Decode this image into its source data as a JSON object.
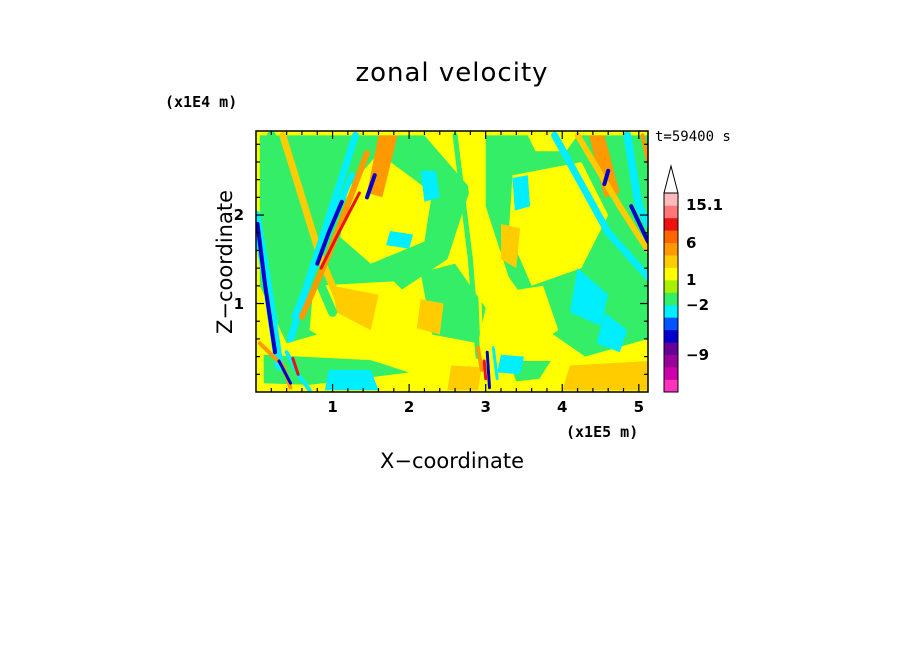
{
  "chart_data": {
    "type": "heatmap",
    "title": "zonal velocity",
    "xlabel": "X−coordinate",
    "ylabel": "Z−coordinate",
    "x_multiplier": "(x1E5 m)",
    "y_multiplier": "(x1E4 m)",
    "time_label": "t=59400 s",
    "xlim": [
      0,
      5.12
    ],
    "ylim": [
      0,
      2.95
    ],
    "x_ticks": [
      1,
      2,
      3,
      4,
      5
    ],
    "x_tick_labels": [
      "1",
      "2",
      "3",
      "4",
      "5"
    ],
    "y_ticks": [
      1,
      2
    ],
    "y_tick_labels": [
      "1",
      "2"
    ],
    "background_color": "#ffff00",
    "colorbar": {
      "levels": [
        {
          "color": "#ff33bb"
        },
        {
          "color": "#cc00aa"
        },
        {
          "color": "#990099"
        },
        {
          "color": "#660099"
        },
        {
          "color": "#0000cc"
        },
        {
          "color": "#0055ff"
        },
        {
          "color": "#00eeff"
        },
        {
          "color": "#33ee66"
        },
        {
          "color": "#aaee00"
        },
        {
          "color": "#ffff00"
        },
        {
          "color": "#ffcc00"
        },
        {
          "color": "#ff9900"
        },
        {
          "color": "#ff6600"
        },
        {
          "color": "#ee1111"
        },
        {
          "color": "#ff7777"
        },
        {
          "color": "#ffbbbb"
        }
      ],
      "labels": [
        "15.1",
        "6",
        "1",
        "−2",
        "−9"
      ],
      "label_levels": [
        15.1,
        6,
        1,
        -2,
        -9
      ]
    },
    "regions": [
      {
        "color": "#33ee66",
        "points": [
          [
            0.05,
            2.9
          ],
          [
            2.2,
            2.9
          ],
          [
            2.8,
            2.3
          ],
          [
            2.5,
            1.5
          ],
          [
            1.2,
            0.75
          ],
          [
            0.4,
            0.55
          ],
          [
            0.05,
            1.2
          ]
        ]
      },
      {
        "color": "#33ee66",
        "points": [
          [
            2.15,
            1.35
          ],
          [
            2.6,
            1.45
          ],
          [
            3.0,
            0.95
          ],
          [
            2.9,
            0.55
          ],
          [
            2.3,
            0.65
          ]
        ]
      },
      {
        "color": "#33ee66",
        "points": [
          [
            3.0,
            2.9
          ],
          [
            5.12,
            2.9
          ],
          [
            5.12,
            0.6
          ],
          [
            4.3,
            0.4
          ],
          [
            3.8,
            0.7
          ],
          [
            3.3,
            1.3
          ],
          [
            3.0,
            2.1
          ]
        ]
      },
      {
        "color": "#33ee66",
        "points": [
          [
            3.3,
            0.35
          ],
          [
            3.85,
            0.35
          ],
          [
            3.7,
            0.15
          ],
          [
            3.4,
            0.12
          ]
        ]
      },
      {
        "color": "#33ee66",
        "points": [
          [
            0.1,
            0.42
          ],
          [
            1.5,
            0.36
          ],
          [
            2.0,
            0.22
          ],
          [
            0.7,
            0.08
          ],
          [
            0.1,
            0.1
          ]
        ]
      },
      {
        "color": "#ffff00",
        "points": [
          [
            1.6,
            2.7
          ],
          [
            2.3,
            2.25
          ],
          [
            2.2,
            1.7
          ],
          [
            1.5,
            1.45
          ],
          [
            1.1,
            1.75
          ],
          [
            1.2,
            2.3
          ]
        ]
      },
      {
        "color": "#ffff00",
        "points": [
          [
            0.75,
            1.2
          ],
          [
            1.8,
            1.25
          ],
          [
            2.2,
            0.9
          ],
          [
            1.9,
            0.55
          ],
          [
            1.1,
            0.5
          ],
          [
            0.7,
            0.7
          ]
        ]
      },
      {
        "color": "#ffff00",
        "points": [
          [
            3.35,
            2.45
          ],
          [
            4.25,
            2.6
          ],
          [
            4.6,
            2.0
          ],
          [
            4.25,
            1.4
          ],
          [
            3.6,
            1.2
          ],
          [
            3.3,
            1.8
          ]
        ]
      },
      {
        "color": "#ffff00",
        "points": [
          [
            3.0,
            1.1
          ],
          [
            3.75,
            1.2
          ],
          [
            3.95,
            0.7
          ],
          [
            3.5,
            0.45
          ],
          [
            3.05,
            0.6
          ]
        ]
      },
      {
        "color": "#ffff00",
        "points": [
          [
            3.55,
            2.9
          ],
          [
            4.2,
            2.9
          ],
          [
            4.05,
            2.72
          ],
          [
            3.65,
            2.72
          ]
        ]
      },
      {
        "color": "#00eeff",
        "points": [
          [
            2.15,
            2.5
          ],
          [
            2.35,
            2.5
          ],
          [
            2.4,
            2.2
          ],
          [
            2.2,
            2.15
          ]
        ]
      },
      {
        "color": "#00eeff",
        "points": [
          [
            1.75,
            1.82
          ],
          [
            2.05,
            1.78
          ],
          [
            2.0,
            1.62
          ],
          [
            1.7,
            1.66
          ]
        ]
      },
      {
        "color": "#00eeff",
        "points": [
          [
            3.35,
            2.42
          ],
          [
            3.55,
            2.45
          ],
          [
            3.58,
            2.1
          ],
          [
            3.38,
            2.05
          ]
        ]
      },
      {
        "color": "#00eeff",
        "points": [
          [
            4.2,
            1.4
          ],
          [
            4.6,
            1.1
          ],
          [
            4.5,
            0.75
          ],
          [
            4.1,
            0.9
          ]
        ]
      },
      {
        "color": "#00eeff",
        "points": [
          [
            4.55,
            0.9
          ],
          [
            4.85,
            0.7
          ],
          [
            4.75,
            0.45
          ],
          [
            4.45,
            0.55
          ]
        ]
      },
      {
        "color": "#00eeff",
        "points": [
          [
            0.95,
            0.25
          ],
          [
            1.5,
            0.25
          ],
          [
            1.6,
            0.02
          ],
          [
            0.9,
            0.02
          ]
        ]
      },
      {
        "color": "#00eeff",
        "points": [
          [
            3.2,
            0.42
          ],
          [
            3.5,
            0.4
          ],
          [
            3.45,
            0.2
          ],
          [
            3.15,
            0.22
          ]
        ]
      },
      {
        "color": "#ffcc00",
        "points": [
          [
            1.0,
            1.2
          ],
          [
            1.6,
            1.1
          ],
          [
            1.5,
            0.7
          ],
          [
            1.05,
            0.9
          ]
        ]
      },
      {
        "color": "#ffcc00",
        "points": [
          [
            2.15,
            1.05
          ],
          [
            2.45,
            1.0
          ],
          [
            2.4,
            0.65
          ],
          [
            2.1,
            0.72
          ]
        ]
      },
      {
        "color": "#ffcc00",
        "points": [
          [
            3.2,
            1.9
          ],
          [
            3.45,
            1.85
          ],
          [
            3.4,
            1.4
          ],
          [
            3.2,
            1.5
          ]
        ]
      },
      {
        "color": "#ffcc00",
        "points": [
          [
            2.55,
            0.3
          ],
          [
            2.95,
            0.28
          ],
          [
            2.9,
            0.02
          ],
          [
            2.5,
            0.02
          ]
        ]
      },
      {
        "color": "#ffcc00",
        "points": [
          [
            4.1,
            0.3
          ],
          [
            5.12,
            0.35
          ],
          [
            5.12,
            0.02
          ],
          [
            4.0,
            0.02
          ]
        ]
      },
      {
        "color": "#ff9900",
        "points": [
          [
            1.6,
            2.9
          ],
          [
            1.85,
            2.9
          ],
          [
            1.65,
            2.2
          ],
          [
            1.45,
            2.25
          ]
        ]
      },
      {
        "color": "#ff9900",
        "points": [
          [
            4.35,
            2.9
          ],
          [
            4.55,
            2.9
          ],
          [
            4.75,
            2.25
          ],
          [
            4.55,
            2.2
          ]
        ]
      }
    ],
    "bands": [
      {
        "color": "#33ee66",
        "width": 9,
        "points": [
          [
            0.2,
            2.9
          ],
          [
            0.75,
            1.4
          ],
          [
            1.0,
            0.9
          ]
        ]
      },
      {
        "color": "#ffcc00",
        "width": 7,
        "points": [
          [
            0.35,
            2.9
          ],
          [
            0.85,
            1.5
          ],
          [
            1.1,
            1.0
          ]
        ]
      },
      {
        "color": "#00eeff",
        "width": 7,
        "points": [
          [
            1.3,
            2.9
          ],
          [
            0.7,
            1.3
          ],
          [
            0.45,
            0.6
          ]
        ]
      },
      {
        "color": "#ff9900",
        "width": 6,
        "points": [
          [
            1.45,
            2.7
          ],
          [
            0.95,
            1.55
          ],
          [
            0.6,
            0.85
          ]
        ]
      },
      {
        "color": "#ee1111",
        "width": 3,
        "points": [
          [
            1.35,
            2.25
          ],
          [
            1.05,
            1.75
          ],
          [
            0.85,
            1.4
          ]
        ]
      },
      {
        "color": "#00eeff",
        "width": 6,
        "points": [
          [
            1.25,
            2.45
          ],
          [
            0.85,
            1.6
          ],
          [
            0.5,
            0.85
          ]
        ]
      },
      {
        "color": "#0000cc",
        "width": 4,
        "points": [
          [
            1.12,
            2.15
          ],
          [
            0.95,
            1.8
          ],
          [
            0.8,
            1.45
          ]
        ]
      },
      {
        "color": "#0000cc",
        "width": 4,
        "points": [
          [
            1.55,
            2.45
          ],
          [
            1.45,
            2.2
          ]
        ]
      },
      {
        "color": "#00eeff",
        "width": 9,
        "points": [
          [
            0.0,
            2.0
          ],
          [
            0.15,
            1.2
          ],
          [
            0.3,
            0.3
          ]
        ]
      },
      {
        "color": "#0000cc",
        "width": 4,
        "points": [
          [
            0.02,
            1.9
          ],
          [
            0.12,
            1.2
          ],
          [
            0.25,
            0.45
          ]
        ]
      },
      {
        "color": "#00eeff",
        "width": 7,
        "points": [
          [
            3.9,
            2.9
          ],
          [
            4.6,
            1.8
          ],
          [
            5.12,
            1.3
          ]
        ]
      },
      {
        "color": "#ffcc00",
        "width": 6,
        "points": [
          [
            4.2,
            2.9
          ],
          [
            4.75,
            2.1
          ],
          [
            5.12,
            1.6
          ]
        ]
      },
      {
        "color": "#00eeff",
        "width": 8,
        "points": [
          [
            4.85,
            2.9
          ],
          [
            5.0,
            2.1
          ],
          [
            5.12,
            1.9
          ]
        ]
      },
      {
        "color": "#0000cc",
        "width": 4,
        "points": [
          [
            4.6,
            2.5
          ],
          [
            4.55,
            2.35
          ]
        ]
      },
      {
        "color": "#0000cc",
        "width": 4,
        "points": [
          [
            4.9,
            2.1
          ],
          [
            5.12,
            1.7
          ]
        ]
      },
      {
        "color": "#ff9900",
        "width": 4,
        "points": [
          [
            5.05,
            2.9
          ],
          [
            5.12,
            2.6
          ]
        ]
      },
      {
        "color": "#33ee66",
        "width": 5,
        "points": [
          [
            2.6,
            2.9
          ],
          [
            2.8,
            1.5
          ],
          [
            2.9,
            0.4
          ]
        ]
      },
      {
        "color": "#ffff00",
        "width": 3,
        "points": [
          [
            2.7,
            2.9
          ],
          [
            2.9,
            1.6
          ],
          [
            2.95,
            0.5
          ]
        ]
      },
      {
        "color": "#ff9900",
        "width": 4,
        "points": [
          [
            0.05,
            0.55
          ],
          [
            0.35,
            0.3
          ],
          [
            0.45,
            0.05
          ]
        ]
      },
      {
        "color": "#00eeff",
        "width": 4,
        "points": [
          [
            0.4,
            0.45
          ],
          [
            0.55,
            0.2
          ],
          [
            0.7,
            0.02
          ]
        ]
      },
      {
        "color": "#0000cc",
        "width": 3,
        "points": [
          [
            0.3,
            0.35
          ],
          [
            0.45,
            0.1
          ]
        ]
      },
      {
        "color": "#ee1111",
        "width": 3,
        "points": [
          [
            0.48,
            0.38
          ],
          [
            0.55,
            0.2
          ]
        ]
      },
      {
        "color": "#ff9900",
        "width": 4,
        "points": [
          [
            2.9,
            0.5
          ],
          [
            2.95,
            0.25
          ]
        ]
      },
      {
        "color": "#0000cc",
        "width": 3,
        "points": [
          [
            3.02,
            0.45
          ],
          [
            3.05,
            0.05
          ]
        ]
      },
      {
        "color": "#00eeff",
        "width": 3,
        "points": [
          [
            3.1,
            0.5
          ],
          [
            3.15,
            0.15
          ]
        ]
      },
      {
        "color": "#ee1111",
        "width": 3,
        "points": [
          [
            2.98,
            0.35
          ],
          [
            3.0,
            0.15
          ]
        ]
      }
    ]
  }
}
